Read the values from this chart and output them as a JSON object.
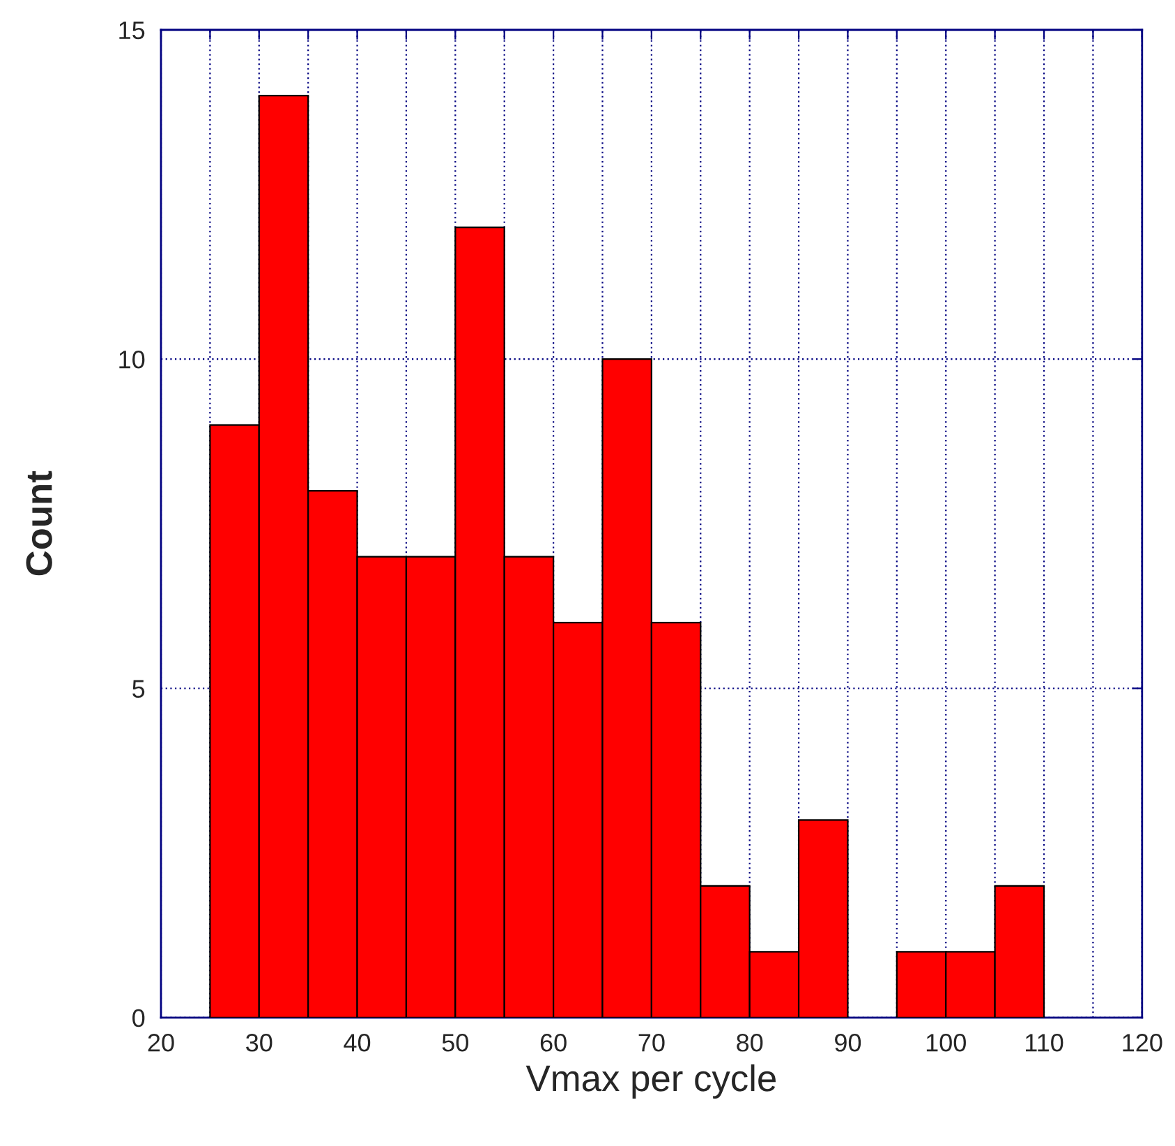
{
  "chart_data": {
    "type": "histogram",
    "xlabel": "Vmax per cycle",
    "ylabel": "Count",
    "bins": [
      25,
      30,
      35,
      40,
      45,
      50,
      55,
      60,
      65,
      70,
      75,
      80,
      85,
      90,
      95,
      100,
      105,
      110
    ],
    "values": [
      9,
      14,
      8,
      7,
      7,
      12,
      7,
      6,
      10,
      6,
      2,
      1,
      3,
      0,
      1,
      1,
      2
    ],
    "color": "#ff0000",
    "xlim": [
      20,
      120
    ],
    "xticks": [
      20,
      {
        "value": 25,
        "label": null
      },
      30,
      {
        "value": 35,
        "label": null
      },
      40,
      {
        "value": 45,
        "label": null
      },
      50,
      {
        "value": 55,
        "label": null
      },
      60,
      {
        "value": 65,
        "label": null
      },
      70,
      {
        "value": 75,
        "label": null
      },
      80,
      {
        "value": 85,
        "label": null
      },
      90,
      {
        "value": 95,
        "label": null
      },
      100,
      {
        "value": 105,
        "label": null
      },
      110,
      {
        "value": 115,
        "label": null
      },
      120
    ],
    "ylim": [
      0,
      15
    ],
    "yticks": [
      0,
      5,
      10,
      15
    ],
    "grid": true,
    "legend": false
  }
}
